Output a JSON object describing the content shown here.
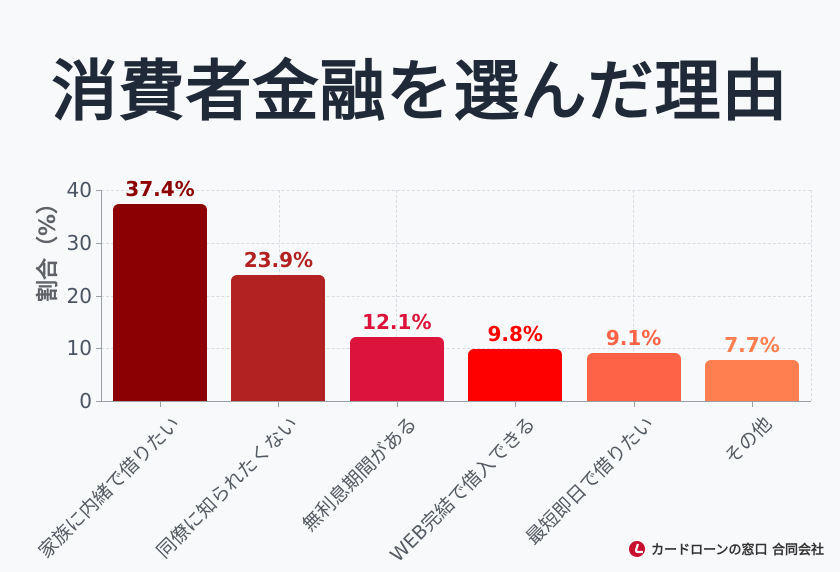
{
  "title": "消費者金融を選んだ理由",
  "credit": {
    "text": "カードローンの窓口 合同会社",
    "logo": "card-loan-madoguchi-logo"
  },
  "chart_data": {
    "type": "bar",
    "title": "消費者金融を選んだ理由",
    "xlabel": "",
    "ylabel": "割合（%）",
    "ylim": [
      0,
      40
    ],
    "yticks": [
      0,
      10,
      20,
      30,
      40
    ],
    "grid": true,
    "legend": null,
    "categories": [
      "家族に内緒で借りたい",
      "同僚に知られたくない",
      "無利息期間がある",
      "WEB完結で借入できる",
      "最短即日で借りたい",
      "その他"
    ],
    "values": [
      37.4,
      23.9,
      12.1,
      9.8,
      9.1,
      7.7
    ],
    "value_labels": [
      "37.4%",
      "23.9%",
      "12.1%",
      "9.8%",
      "9.1%",
      "7.7%"
    ],
    "colors": [
      "#8b0000",
      "#b22222",
      "#dc143c",
      "#ff0000",
      "#ff6347",
      "#ff7f50"
    ]
  }
}
